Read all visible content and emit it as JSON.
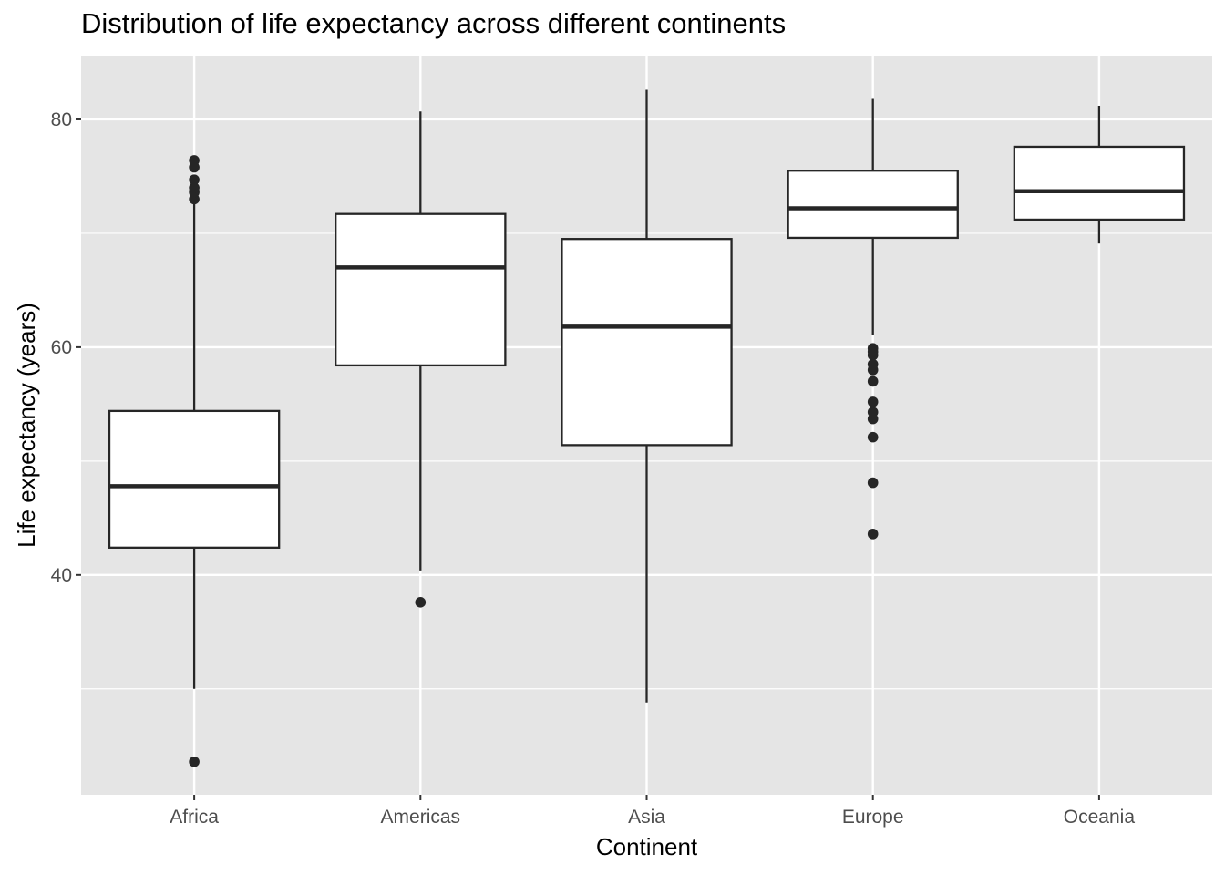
{
  "chart_data": {
    "type": "box",
    "title": "Distribution of life expectancy across different continents",
    "xlabel": "Continent",
    "ylabel": "Life expectancy (years)",
    "ylim": [
      20.7,
      85.6
    ],
    "yticks": [
      40,
      60,
      80
    ],
    "yminor": [
      30,
      50,
      70
    ],
    "grid": true,
    "legend": "none",
    "colors": {
      "panel": "#e5e5e5",
      "grid": "#ffffff",
      "box_fill": "#ffffff",
      "box_line": "#262626",
      "tick_text": "#4d4d4d"
    },
    "categories": [
      "Africa",
      "Americas",
      "Asia",
      "Europe",
      "Oceania"
    ],
    "boxes": [
      {
        "category": "Africa",
        "whisker_low": 30.0,
        "q1": 42.4,
        "median": 47.8,
        "q3": 54.4,
        "whisker_high": 72.7,
        "outliers": [
          23.6,
          73.0,
          73.6,
          74.0,
          74.7,
          75.8,
          76.4
        ]
      },
      {
        "category": "Americas",
        "whisker_low": 40.4,
        "q1": 58.4,
        "median": 67.0,
        "q3": 71.7,
        "whisker_high": 80.7,
        "outliers": [
          37.6
        ]
      },
      {
        "category": "Asia",
        "whisker_low": 28.8,
        "q1": 51.4,
        "median": 61.8,
        "q3": 69.5,
        "whisker_high": 82.6,
        "outliers": []
      },
      {
        "category": "Europe",
        "whisker_low": 61.1,
        "q1": 69.6,
        "median": 72.2,
        "q3": 75.5,
        "whisker_high": 81.8,
        "outliers": [
          43.6,
          48.1,
          52.1,
          53.7,
          54.3,
          55.2,
          57.0,
          58.0,
          58.5,
          59.3,
          59.6,
          59.9
        ]
      },
      {
        "category": "Oceania",
        "whisker_low": 69.1,
        "q1": 71.2,
        "median": 73.7,
        "q3": 77.6,
        "whisker_high": 81.2,
        "outliers": []
      }
    ]
  }
}
